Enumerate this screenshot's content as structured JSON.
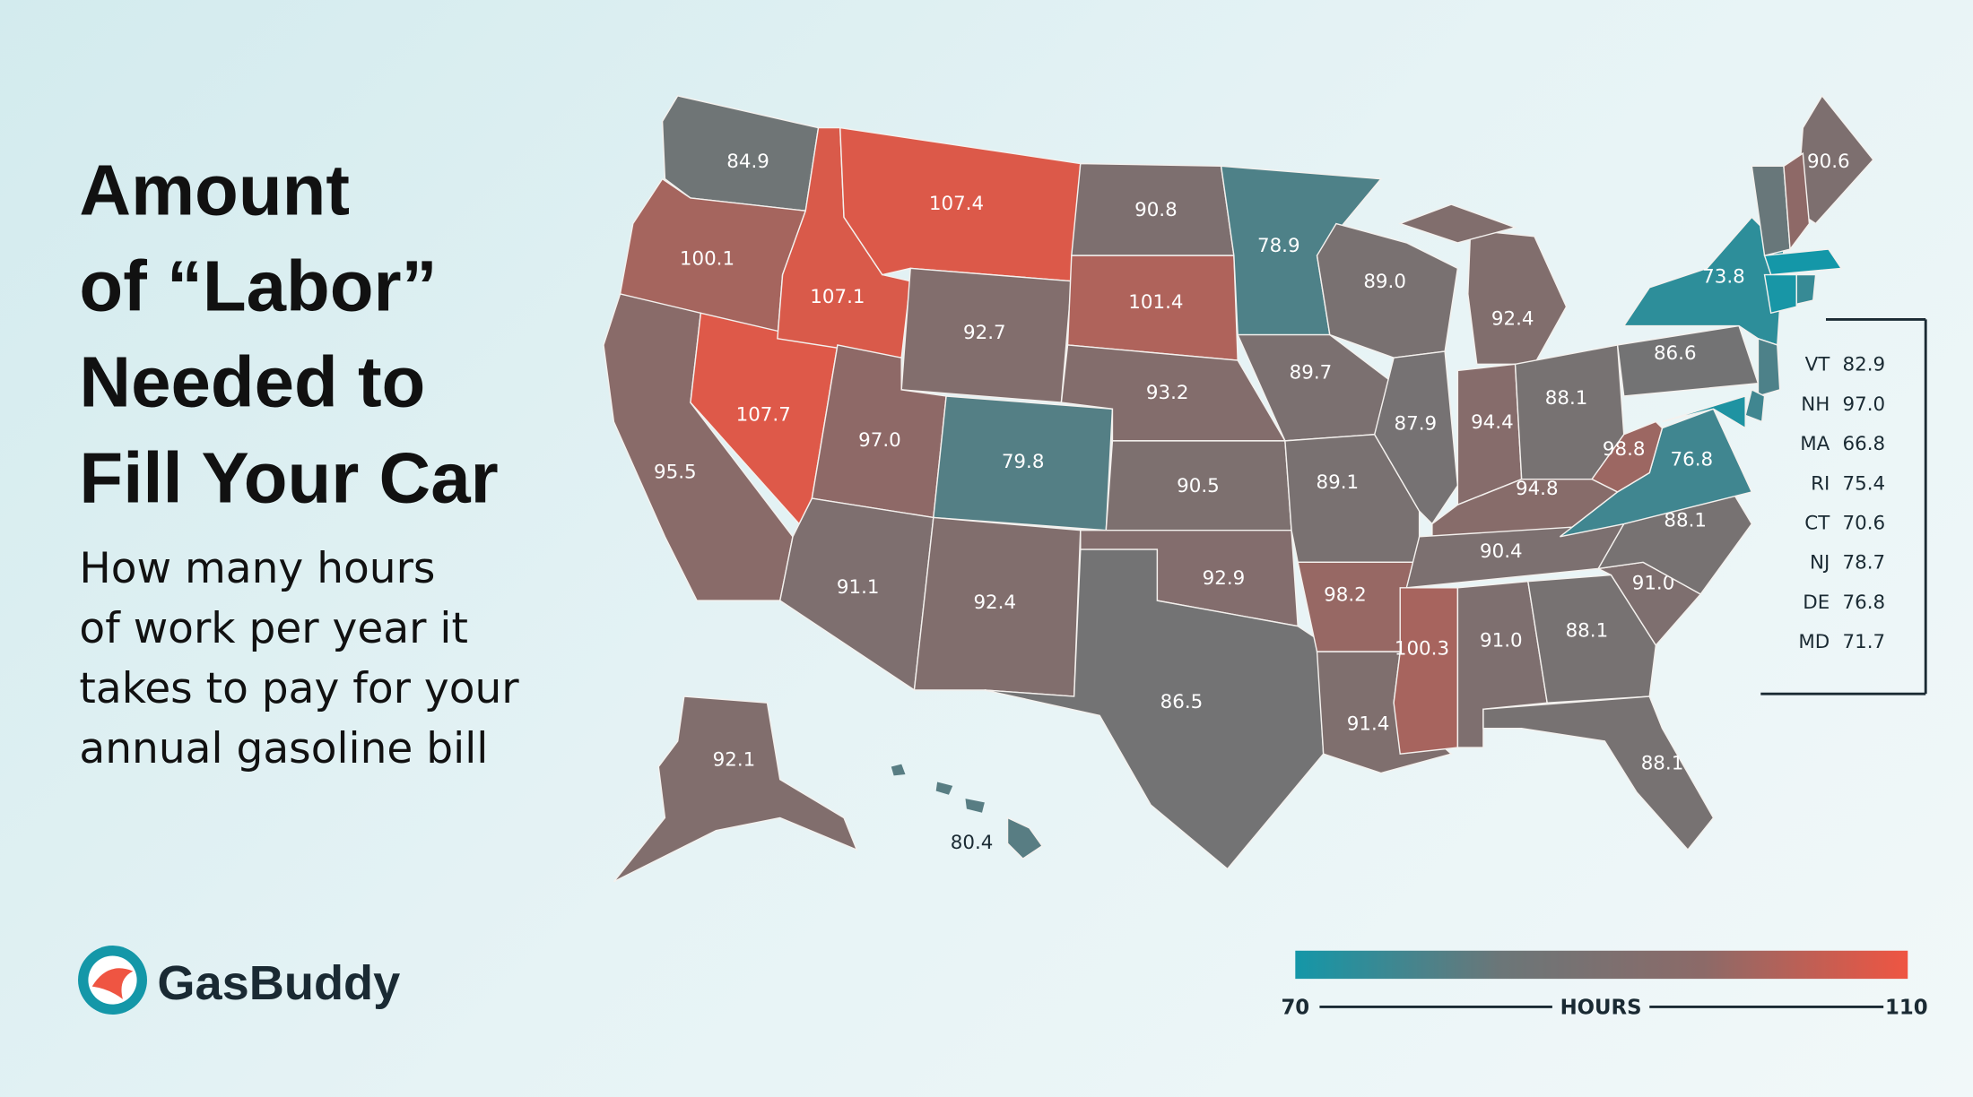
{
  "title_lines": [
    "Amount",
    "of “Labor”",
    "Needed to",
    "Fill Your Car"
  ],
  "subtitle_lines": [
    "How many hours",
    "of work per year it",
    "takes to pay for your",
    "annual gasoline bill"
  ],
  "logo": "GasBuddy",
  "map": {
    "states": [
      {
        "value": 84.9
      },
      {
        "value": 100.1
      },
      {
        "value": 95.5
      },
      {
        "value": 107.7
      },
      {
        "value": 107.1
      },
      {
        "value": 107.4
      },
      {
        "value": 92.7
      },
      {
        "value": 97.0,
        "value_label": "97.0"
      },
      {
        "value": 79.8
      },
      {
        "value": 91.1
      },
      {
        "value": 92.4
      },
      {
        "value": 90.8
      },
      {
        "value": 101.4
      },
      {
        "value": 93.2
      },
      {
        "value": 90.5
      },
      {
        "value": 92.9
      },
      {
        "value": 86.5
      },
      {
        "value": 78.9
      },
      {
        "value": 89.7
      },
      {
        "value": 89.1
      },
      {
        "value": 98.2
      },
      {
        "value": 91.4
      },
      {
        "value": 89.0,
        "value_label": "89.0"
      },
      {
        "value": 87.9
      },
      {
        "value": 92.4
      },
      {
        "value": 94.4
      },
      {
        "value": 88.1
      },
      {
        "value": 94.8
      },
      {
        "value": 90.4
      },
      {
        "value": 100.3
      },
      {
        "value": 91.0,
        "value_label": "91.0"
      },
      {
        "value": 88.1
      },
      {
        "value": 88.1
      },
      {
        "value": 91.0,
        "value_label": "91.0"
      },
      {
        "value": 88.1
      },
      {
        "value": 76.8
      },
      {
        "value": 98.8
      },
      {
        "value": 86.6
      },
      {
        "value": 73.8
      },
      {
        "value": 90.6
      },
      {
        "value": 92.1
      },
      {
        "value": 80.4
      }
    ],
    "inset": [
      {
        "name": "VT",
        "value": 82.9
      },
      {
        "name": "NH",
        "value": 97.0,
        "value_label": "97.0"
      },
      {
        "name": "MA",
        "value": 66.8
      },
      {
        "name": "RI",
        "value": 75.4
      },
      {
        "name": "CT",
        "value": 70.6
      },
      {
        "name": "NJ",
        "value": 78.7
      },
      {
        "name": "DE",
        "value": 76.8
      },
      {
        "name": "MD",
        "value": 71.7
      }
    ],
    "scale": {
      "min": 70,
      "max": 110,
      "label": "HOURS",
      "colors": [
        "#1497a8",
        "#6b7678",
        "#8c6a68",
        "#ef5542"
      ]
    }
  }
}
